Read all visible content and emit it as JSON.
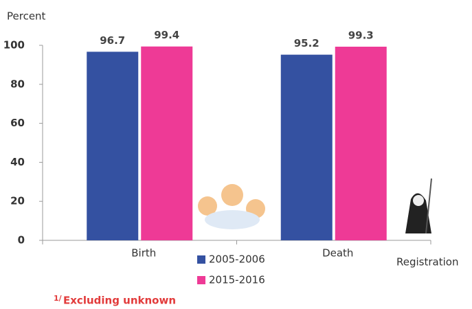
{
  "chart_data": {
    "type": "bar",
    "y_label": "Percent",
    "x_label": "Registration",
    "categories": [
      "Birth",
      "Death"
    ],
    "series": [
      {
        "name": "2005-2006",
        "color": "#3451a1",
        "values": [
          96.7,
          95.2
        ]
      },
      {
        "name": "2015-2016",
        "color": "#ee3a96",
        "values": [
          99.4,
          99.3
        ]
      }
    ],
    "ylim": [
      0,
      100
    ],
    "yticks": [
      0,
      20,
      40,
      60,
      80,
      100
    ],
    "grid": false,
    "footnote_marker": "1/",
    "footnote": "Excluding unknown"
  }
}
